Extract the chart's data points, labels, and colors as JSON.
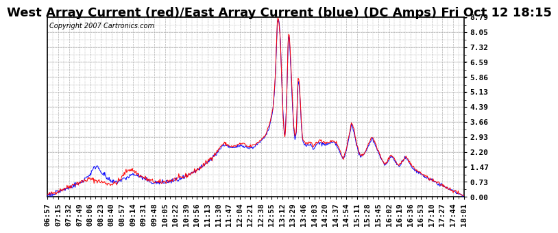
{
  "title": "West Array Current (red)/East Array Current (blue) (DC Amps) Fri Oct 12 18:15",
  "copyright": "Copyright 2007 Cartronics.com",
  "ylabel_ticks": [
    0.0,
    0.73,
    1.47,
    2.2,
    2.93,
    3.66,
    4.39,
    5.13,
    5.86,
    6.59,
    7.32,
    8.05,
    8.79
  ],
  "ymin": 0.0,
  "ymax": 8.79,
  "x_labels": [
    "06:57",
    "07:15",
    "07:32",
    "07:49",
    "08:06",
    "08:23",
    "08:40",
    "08:57",
    "09:14",
    "09:31",
    "09:48",
    "10:05",
    "10:22",
    "10:39",
    "10:56",
    "11:13",
    "11:30",
    "11:47",
    "12:04",
    "12:21",
    "12:38",
    "12:55",
    "13:12",
    "13:29",
    "13:46",
    "14:03",
    "14:20",
    "14:37",
    "14:54",
    "15:11",
    "15:28",
    "15:45",
    "16:02",
    "16:19",
    "16:36",
    "16:53",
    "17:10",
    "17:27",
    "17:44",
    "18:01"
  ],
  "background_color": "#ffffff",
  "grid_color": "#b0b0b0",
  "red_color": "#ff0000",
  "blue_color": "#0000ff",
  "title_fontsize": 13,
  "tick_fontsize": 8,
  "copyright_fontsize": 7
}
